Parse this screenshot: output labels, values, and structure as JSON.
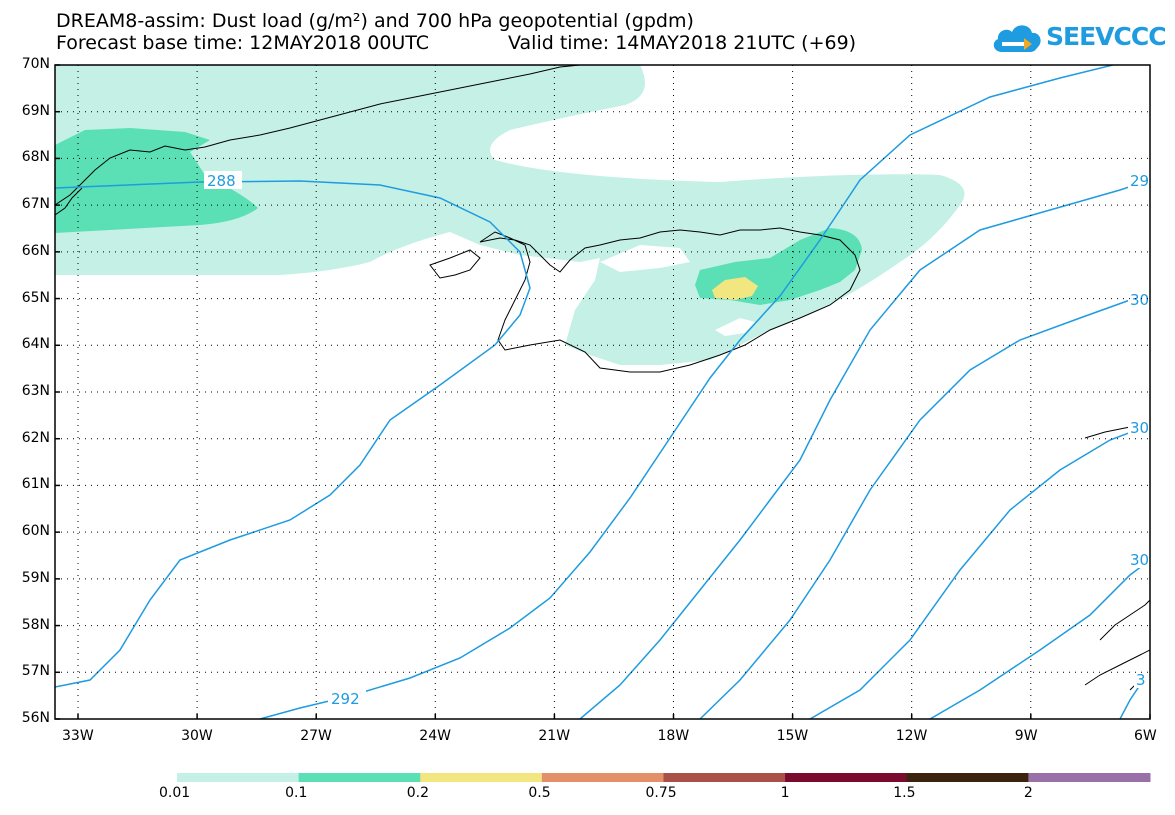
{
  "title": {
    "line1": "DREAM8-assim: Dust load (g/m²) and 700 hPa geopotential (gpdm)",
    "forecast_base": "Forecast base time: 12MAY2018 00UTC",
    "valid_time": "Valid time: 14MAY2018 21UTC (+69)"
  },
  "logo": {
    "text": "SEEVCCC",
    "color": "#1f9be0",
    "icon": "cloud-arrow-icon"
  },
  "map": {
    "lat_labels": [
      "70N",
      "69N",
      "68N",
      "67N",
      "66N",
      "65N",
      "64N",
      "63N",
      "62N",
      "61N",
      "60N",
      "59N",
      "58N",
      "57N",
      "56N"
    ],
    "lon_labels": [
      "33W",
      "30W",
      "27W",
      "24W",
      "21W",
      "18W",
      "15W",
      "12W",
      "9W",
      "6W"
    ],
    "contour_color": "#1f9be0",
    "contour_labels": [
      "288",
      "292",
      "29",
      "30",
      "30",
      "30",
      "3"
    ]
  },
  "colorbar": {
    "colors": [
      "#c4f0e6",
      "#5ae0b4",
      "#f2e680",
      "#e28f6a",
      "#aa5048",
      "#7a0a2e",
      "#3a2410",
      "#9a70a8"
    ],
    "labels": [
      "0.01",
      "0.1",
      "0.2",
      "0.5",
      "0.75",
      "1",
      "1.5",
      "2"
    ]
  }
}
